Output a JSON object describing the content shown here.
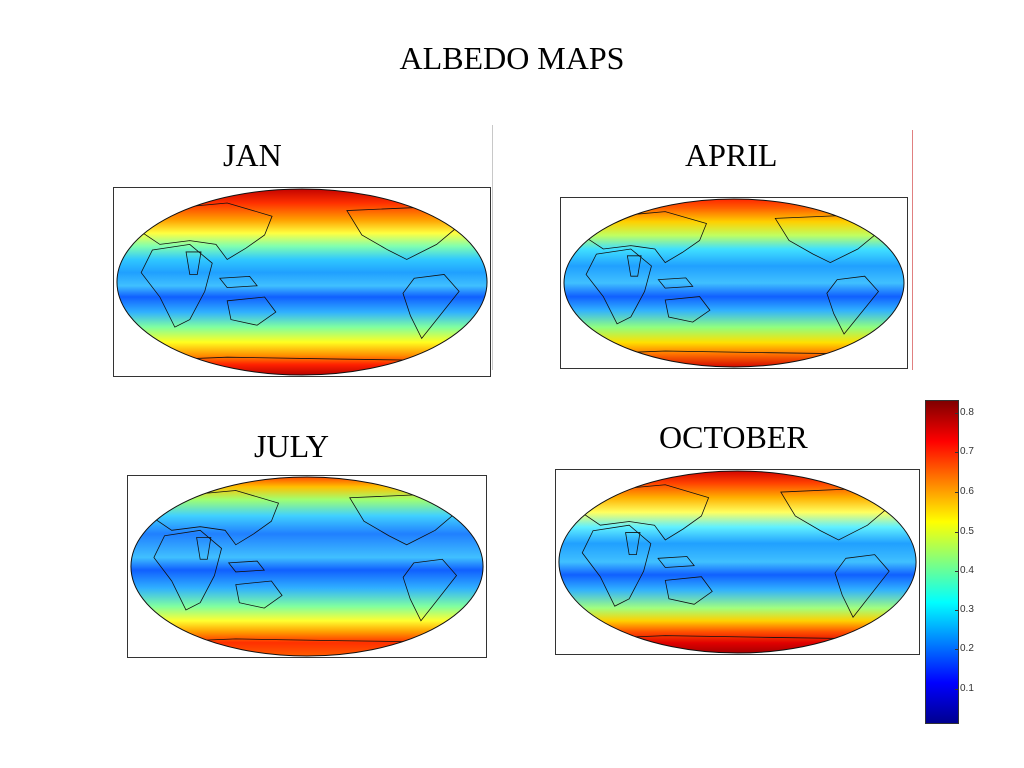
{
  "title": "ALBEDO MAPS",
  "panels": [
    {
      "label": "JAN",
      "season": "jan"
    },
    {
      "label": "APRIL",
      "season": "apr"
    },
    {
      "label": "JULY",
      "season": "jul"
    },
    {
      "label": "OCTOBER",
      "season": "oct"
    }
  ],
  "colorbar": {
    "ticks": [
      "0.8",
      "0.7",
      "0.6",
      "0.5",
      "0.4",
      "0.3",
      "0.2",
      "0.1"
    ],
    "colormap": [
      "#00008f",
      "#0000ff",
      "#0080ff",
      "#00ffff",
      "#80ff80",
      "#ffff00",
      "#ff8000",
      "#ff0000",
      "#800000"
    ]
  }
}
